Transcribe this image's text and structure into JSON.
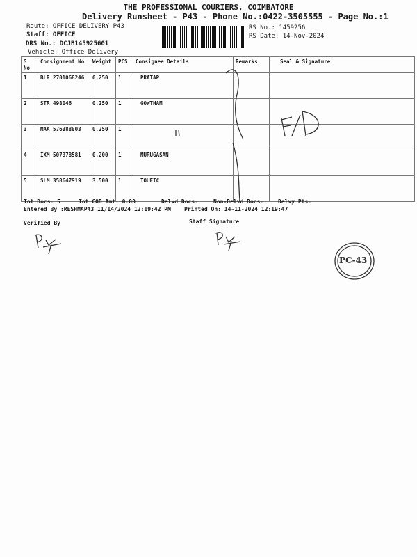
{
  "header": {
    "company": "THE PROFESSIONAL COURIERS, COIMBATORE",
    "runsheet": "Delivery Runsheet - P43 - Phone No.:0422-3505555 - Page No.:1",
    "route": "Route: OFFICE DELIVERY P43",
    "staff": "Staff: OFFICE",
    "drs": "DRS No.: DCJB145925601",
    "vehicle": "Vehicle: Office Delivery",
    "rs_no": "RS No.: 1459256",
    "rs_date": "RS Date: 14-Nov-2024"
  },
  "table": {
    "columns": [
      "S No",
      "Consignment No",
      "Weight",
      "PCS",
      "Consignee Details",
      "Remarks",
      "Seal & Signature"
    ],
    "rows": [
      {
        "sno": "1",
        "cno": "BLR 2701068246",
        "weight": "0.250",
        "pcs": "1",
        "consignee": "PRATAP"
      },
      {
        "sno": "2",
        "cno": "STR 498046",
        "weight": "0.250",
        "pcs": "1",
        "consignee": "GOWTHAM"
      },
      {
        "sno": "3",
        "cno": "MAA 576388803",
        "weight": "0.250",
        "pcs": "1",
        "consignee": ""
      },
      {
        "sno": "4",
        "cno": "IXM 507378581",
        "weight": "0.200",
        "pcs": "1",
        "consignee": "MURUGASAN"
      },
      {
        "sno": "5",
        "cno": "SLM 358647919",
        "weight": "3.500",
        "pcs": "1",
        "consignee": "TOUFIC"
      }
    ]
  },
  "footer": {
    "tot_docs": "Tot Docs:   5",
    "cod": "Tot COD Amt:    0.00",
    "delvd": "Delvd Docs:",
    "non_delvd": "Non-Delvd Docs:",
    "pts": "Delvy Pts:",
    "entered": "Entered By :RESHMAP43 11/14/2024 12:19:42 PM",
    "printed": "Printed On: 14-11-2024 12:19:47",
    "verified": "Verified By",
    "staff_sig": "Staff Signature"
  },
  "handwriting": {
    "remark": "F/D",
    "stamp": "PC-43"
  }
}
